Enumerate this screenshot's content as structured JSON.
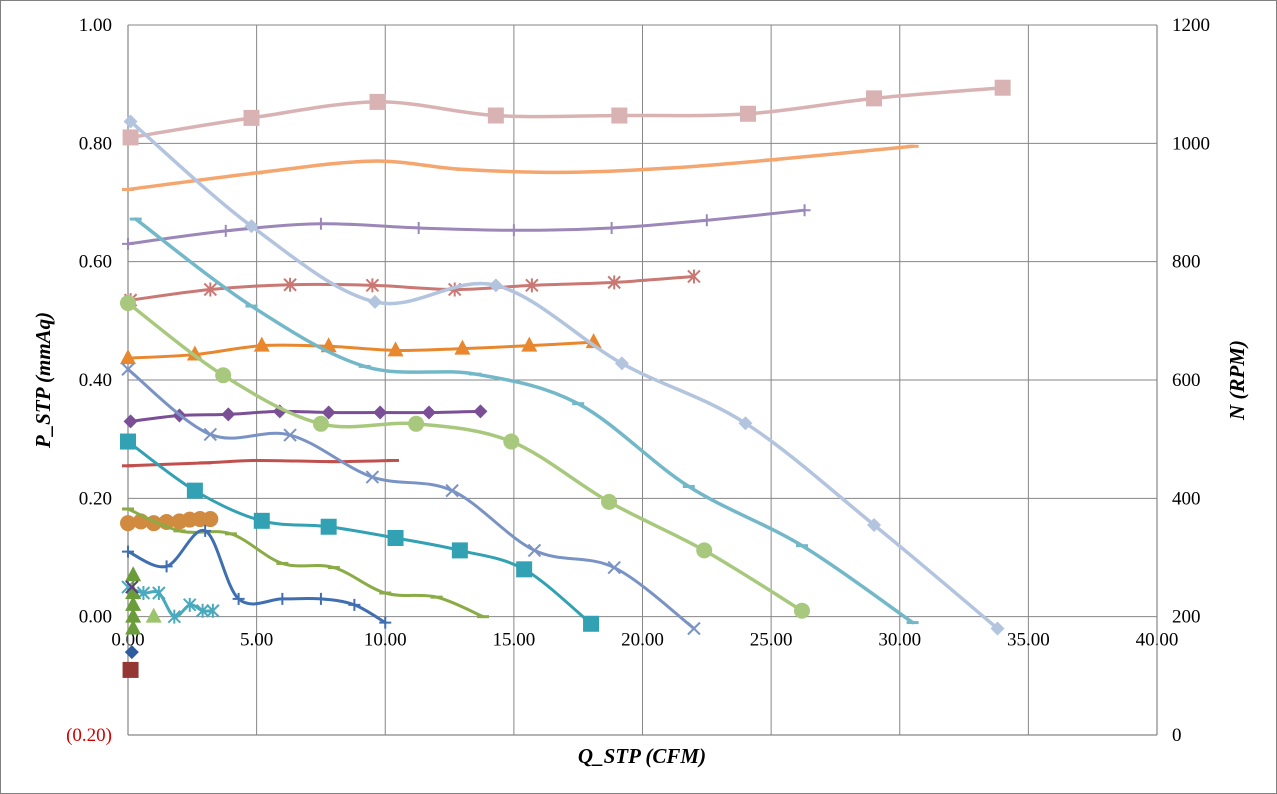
{
  "chart_data": {
    "type": "line",
    "title": "",
    "xlabel": "Q_STP (CFM)",
    "ylabel": "P_STP (mmAq)",
    "y2label": "N (RPM)",
    "xlim": [
      0,
      40
    ],
    "ylim": [
      -0.2,
      1.0
    ],
    "y2lim": [
      0,
      1200
    ],
    "x_ticks": [
      "0.00",
      "5.00",
      "10.00",
      "15.00",
      "20.00",
      "25.00",
      "30.00",
      "35.00",
      "40.00"
    ],
    "y_ticks": [
      "(0.20)",
      "0.00",
      "0.20",
      "0.40",
      "0.60",
      "0.80",
      "1.00"
    ],
    "y2_ticks": [
      "0",
      "200",
      "400",
      "600",
      "800",
      "1000",
      "1200"
    ],
    "grid": true,
    "legend": "none",
    "series": [
      {
        "color": "#d9b3b3",
        "marker": "square",
        "lw": 3.5,
        "points": [
          [
            0.1,
            0.81
          ],
          [
            4.8,
            0.843
          ],
          [
            9.7,
            0.87
          ],
          [
            14.3,
            0.847
          ],
          [
            19.1,
            0.847
          ],
          [
            24.1,
            0.85
          ],
          [
            29.0,
            0.876
          ],
          [
            34.0,
            0.894
          ]
        ]
      },
      {
        "color": "#f5a56e",
        "marker": "dash",
        "lw": 3.5,
        "points": [
          [
            0.0,
            0.722
          ],
          [
            5.0,
            0.75
          ],
          [
            9.5,
            0.77
          ],
          [
            13.0,
            0.756
          ],
          [
            17.0,
            0.751
          ],
          [
            21.0,
            0.758
          ],
          [
            25.0,
            0.772
          ],
          [
            30.5,
            0.795
          ]
        ]
      },
      {
        "color": "#9b87b8",
        "marker": "plus",
        "lw": 3,
        "points": [
          [
            0.0,
            0.63
          ],
          [
            3.8,
            0.652
          ],
          [
            7.5,
            0.664
          ],
          [
            11.3,
            0.657
          ],
          [
            15.0,
            0.653
          ],
          [
            18.8,
            0.657
          ],
          [
            22.5,
            0.67
          ],
          [
            26.3,
            0.687
          ]
        ]
      },
      {
        "color": "#c97874",
        "marker": "star",
        "lw": 3,
        "points": [
          [
            0.1,
            0.535
          ],
          [
            3.2,
            0.553
          ],
          [
            6.3,
            0.561
          ],
          [
            9.5,
            0.56
          ],
          [
            12.7,
            0.553
          ],
          [
            15.7,
            0.56
          ],
          [
            18.9,
            0.565
          ],
          [
            22.0,
            0.575
          ]
        ]
      },
      {
        "color": "#e8872e",
        "marker": "triangle",
        "lw": 3,
        "points": [
          [
            0.0,
            0.437
          ],
          [
            2.6,
            0.443
          ],
          [
            5.2,
            0.458
          ],
          [
            7.8,
            0.457
          ],
          [
            10.4,
            0.45
          ],
          [
            13.0,
            0.453
          ],
          [
            15.6,
            0.458
          ],
          [
            18.1,
            0.464
          ]
        ]
      },
      {
        "color": "#7a4f96",
        "marker": "diamond",
        "lw": 3,
        "points": [
          [
            0.1,
            0.33
          ],
          [
            2.0,
            0.34
          ],
          [
            3.9,
            0.342
          ],
          [
            5.9,
            0.347
          ],
          [
            7.8,
            0.345
          ],
          [
            9.8,
            0.345
          ],
          [
            11.7,
            0.345
          ],
          [
            13.7,
            0.347
          ]
        ]
      },
      {
        "color": "#c0504d",
        "marker": "dash",
        "lw": 3,
        "points": [
          [
            0.0,
            0.255
          ],
          [
            3.0,
            0.26
          ],
          [
            5.0,
            0.264
          ],
          [
            8.0,
            0.262
          ],
          [
            10.3,
            0.264
          ]
        ]
      },
      {
        "color": "#d08b41",
        "marker": "circle",
        "lw": 3,
        "points": [
          [
            0.0,
            0.158
          ],
          [
            0.5,
            0.161
          ],
          [
            1.0,
            0.158
          ],
          [
            1.5,
            0.16
          ],
          [
            2.0,
            0.161
          ],
          [
            2.4,
            0.164
          ],
          [
            2.8,
            0.165
          ],
          [
            3.2,
            0.165
          ]
        ]
      },
      {
        "color": "#b3c4de",
        "marker": "diamond",
        "lw": 3.5,
        "points": [
          [
            0.1,
            0.837
          ],
          [
            4.8,
            0.66
          ],
          [
            9.6,
            0.532
          ],
          [
            14.3,
            0.56
          ],
          [
            19.2,
            0.428
          ],
          [
            24.0,
            0.327
          ],
          [
            29.0,
            0.155
          ],
          [
            33.8,
            -0.02
          ]
        ]
      },
      {
        "color": "#72b8c9",
        "marker": "dash",
        "lw": 3.5,
        "points": [
          [
            0.3,
            0.672
          ],
          [
            4.8,
            0.525
          ],
          [
            9.2,
            0.423
          ],
          [
            13.5,
            0.41
          ],
          [
            17.5,
            0.36
          ],
          [
            21.8,
            0.22
          ],
          [
            26.2,
            0.12
          ],
          [
            30.5,
            -0.01
          ]
        ]
      },
      {
        "color": "#a8c97d",
        "marker": "circle",
        "lw": 3.5,
        "points": [
          [
            0.0,
            0.53
          ],
          [
            3.7,
            0.408
          ],
          [
            7.5,
            0.326
          ],
          [
            11.2,
            0.326
          ],
          [
            14.9,
            0.296
          ],
          [
            18.7,
            0.194
          ],
          [
            22.4,
            0.112
          ],
          [
            26.2,
            0.01
          ]
        ]
      },
      {
        "color": "#7a93c5",
        "marker": "x",
        "lw": 3,
        "points": [
          [
            0.0,
            0.418
          ],
          [
            3.2,
            0.308
          ],
          [
            6.3,
            0.307
          ],
          [
            9.5,
            0.236
          ],
          [
            12.6,
            0.213
          ],
          [
            15.8,
            0.112
          ],
          [
            18.9,
            0.083
          ],
          [
            22.0,
            -0.02
          ]
        ]
      },
      {
        "color": "#31a1b3",
        "marker": "square",
        "lw": 3,
        "points": [
          [
            0.0,
            0.296
          ],
          [
            2.6,
            0.213
          ],
          [
            5.2,
            0.162
          ],
          [
            7.8,
            0.152
          ],
          [
            10.4,
            0.133
          ],
          [
            12.9,
            0.112
          ],
          [
            15.4,
            0.08
          ],
          [
            18.0,
            -0.012
          ]
        ]
      },
      {
        "color": "#8aab45",
        "marker": "dash",
        "lw": 3,
        "points": [
          [
            0.0,
            0.182
          ],
          [
            2.0,
            0.145
          ],
          [
            4.0,
            0.14
          ],
          [
            6.0,
            0.09
          ],
          [
            8.0,
            0.083
          ],
          [
            10.0,
            0.04
          ],
          [
            12.0,
            0.033
          ],
          [
            13.8,
            0.0
          ]
        ]
      },
      {
        "color": "#3f6fb0",
        "marker": "plus",
        "lw": 3,
        "points": [
          [
            0.0,
            0.11
          ],
          [
            1.5,
            0.085
          ],
          [
            3.0,
            0.145
          ],
          [
            4.3,
            0.03
          ],
          [
            6.0,
            0.03
          ],
          [
            7.5,
            0.03
          ],
          [
            8.8,
            0.02
          ],
          [
            10.0,
            -0.01
          ]
        ]
      },
      {
        "color": "#4aaabd",
        "marker": "star",
        "lw": 3,
        "points": [
          [
            0.0,
            0.05
          ],
          [
            0.6,
            0.04
          ],
          [
            1.2,
            0.04
          ],
          [
            1.8,
            0.0
          ],
          [
            2.4,
            0.02
          ],
          [
            2.9,
            0.01
          ],
          [
            3.3,
            0.01
          ]
        ]
      },
      {
        "color": "#9bc46d",
        "marker": "triangle",
        "lw": 2,
        "points": [
          [
            1.0,
            0.0
          ]
        ]
      },
      {
        "color": "#6a9c3a",
        "marker": "triangle",
        "lw": 2,
        "points": [
          [
            0.2,
            0.07
          ],
          [
            0.2,
            0.04
          ],
          [
            0.2,
            0.02
          ],
          [
            0.2,
            0.0
          ],
          [
            0.2,
            -0.02
          ]
        ]
      },
      {
        "color": "#5b3a80",
        "marker": "x",
        "lw": 2,
        "points": [
          [
            0.15,
            0.05
          ]
        ]
      },
      {
        "color": "#2e5c9e",
        "marker": "diamond",
        "lw": 2,
        "points": [
          [
            0.15,
            -0.06
          ]
        ]
      },
      {
        "color": "#943634",
        "marker": "square",
        "lw": 2,
        "points": [
          [
            0.1,
            -0.09
          ]
        ]
      }
    ]
  }
}
